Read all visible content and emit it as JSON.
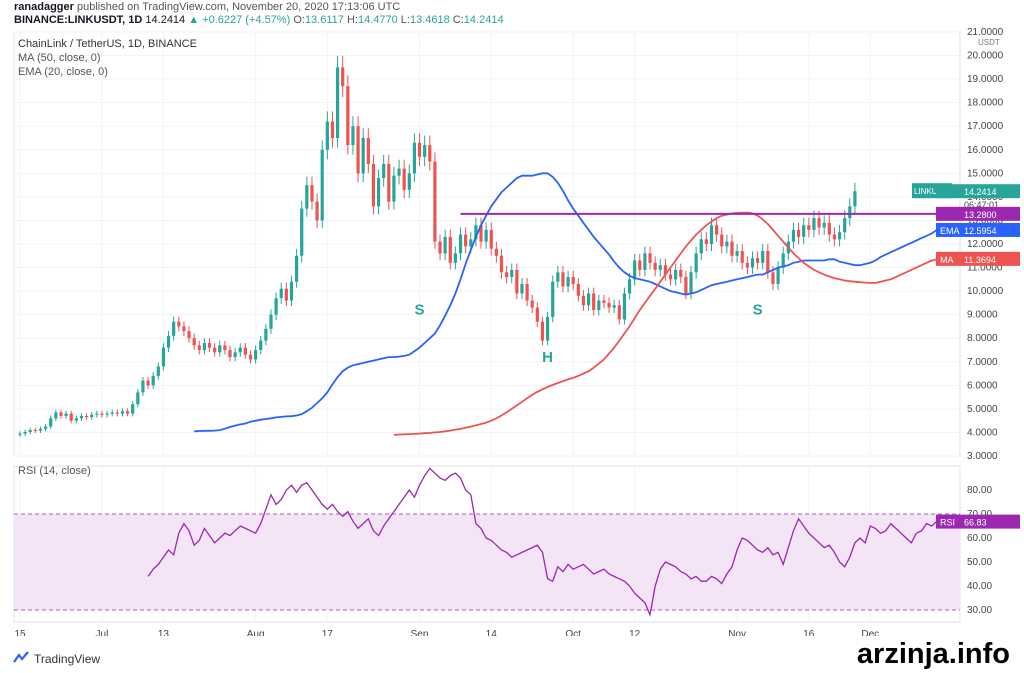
{
  "header": {
    "publisher": "ranadagger",
    "published_text": "published on TradingView.com, November 20, 2020 17:13:06 UTC",
    "symbol_line": "BINANCE:LINKUSDT, 1D",
    "last": "14.2414",
    "change": "▲ +0.6227 (+4.57%)",
    "open_label": "O:",
    "open": "13.6117",
    "high_label": "H:",
    "high": "14.4770",
    "low_label": "L:",
    "low": "13.4618",
    "close_label": "C:",
    "close": "14.2414"
  },
  "legend": {
    "title": "ChainLink / TetherUS, 1D, BINANCE",
    "ma": "MA (50, close, 0)",
    "ema": "EMA (20, close, 0)",
    "rsi": "RSI (14, close)"
  },
  "colors": {
    "up": "#26a69a",
    "down": "#ef5350",
    "ema": "#2962ff",
    "ma": "#ef5350",
    "resistance": "#9c27b0",
    "rsi": "#9c27b0",
    "rsi_band": "#f3e5f5",
    "last_badge": "#26a69a",
    "pattern": "#26a69a"
  },
  "chart_data": [
    {
      "type": "candlestick",
      "title": "ChainLink / TetherUS, 1D, BINANCE",
      "currency": "USDT",
      "ylim": [
        3.0,
        21.0
      ],
      "y_ticks": [
        "3.0000",
        "4.0000",
        "5.0000",
        "6.0000",
        "7.0000",
        "8.0000",
        "9.0000",
        "10.0000",
        "11.0000",
        "12.0000",
        "13.0000",
        "14.0000",
        "15.0000",
        "16.0000",
        "17.0000",
        "18.0000",
        "19.0000",
        "20.0000",
        "21.0000"
      ],
      "x_ticks": [
        "15",
        "Jul",
        "13",
        "Aug",
        "17",
        "Sep",
        "14",
        "Oct",
        "12",
        "Nov",
        "16",
        "Dec"
      ],
      "x_tick_index": [
        0,
        16,
        28,
        46,
        60,
        78,
        92,
        108,
        120,
        140,
        154,
        166
      ],
      "close": [
        3.95,
        4.02,
        4.1,
        4.08,
        4.15,
        4.25,
        4.6,
        4.85,
        4.7,
        4.8,
        4.5,
        4.6,
        4.7,
        4.65,
        4.75,
        4.8,
        4.75,
        4.8,
        4.85,
        4.8,
        4.9,
        4.8,
        5.2,
        5.7,
        6.2,
        6.0,
        6.4,
        6.8,
        7.6,
        8.1,
        8.7,
        8.5,
        8.3,
        8.0,
        7.7,
        7.5,
        7.8,
        7.6,
        7.4,
        7.7,
        7.5,
        7.2,
        7.4,
        7.6,
        7.3,
        7.1,
        7.5,
        7.9,
        8.4,
        9.0,
        9.7,
        10.1,
        9.6,
        10.4,
        11.5,
        13.5,
        14.5,
        13.8,
        13.0,
        16.0,
        17.2,
        16.5,
        19.5,
        18.7,
        16.2,
        17.0,
        15.0,
        16.5,
        15.4,
        13.6,
        14.8,
        15.4,
        13.8,
        14.9,
        15.2,
        14.3,
        15.0,
        16.3,
        15.7,
        16.2,
        15.5,
        12.1,
        11.6,
        12.3,
        11.2,
        11.6,
        12.4,
        11.9,
        12.2,
        12.8,
        12.1,
        12.6,
        11.8,
        11.5,
        10.8,
        10.6,
        10.9,
        9.9,
        10.3,
        9.6,
        9.3,
        8.7,
        7.9,
        8.9,
        10.4,
        10.8,
        10.2,
        10.6,
        10.3,
        9.8,
        9.4,
        9.9,
        9.2,
        9.6,
        9.5,
        9.3,
        9.4,
        8.8,
        9.9,
        10.5,
        11.3,
        10.9,
        11.6,
        11.2,
        10.9,
        11.1,
        10.7,
        10.5,
        10.9,
        10.6,
        9.9,
        10.8,
        11.6,
        12.2,
        12.0,
        12.8,
        12.4,
        11.9,
        12.1,
        11.5,
        11.7,
        11.2,
        11.0,
        11.4,
        11.2,
        11.7,
        10.8,
        10.3,
        11.0,
        11.6,
        12.1,
        12.6,
        12.3,
        12.8,
        12.6,
        13.1,
        12.7,
        12.9,
        12.4,
        12.2,
        12.5,
        13.1,
        13.6,
        14.24
      ],
      "ema20": [
        4.05,
        4.06,
        4.07,
        4.07,
        4.08,
        4.1,
        4.16,
        4.23,
        4.29,
        4.34,
        4.38,
        4.45,
        4.5,
        4.54,
        4.57,
        4.6,
        4.64,
        4.66,
        4.68,
        4.69,
        4.72,
        4.78,
        4.9,
        5.05,
        5.25,
        5.45,
        5.7,
        6.05,
        6.35,
        6.6,
        6.75,
        6.85,
        6.9,
        6.95,
        7.0,
        7.05,
        7.1,
        7.15,
        7.2,
        7.2,
        7.22,
        7.25,
        7.3,
        7.45,
        7.6,
        7.8,
        8.0,
        8.2,
        8.55,
        8.95,
        9.4,
        9.9,
        10.5,
        11.15,
        11.75,
        12.3,
        12.8,
        13.2,
        13.6,
        13.9,
        14.2,
        14.4,
        14.6,
        14.8,
        14.9,
        14.9,
        14.9,
        14.95,
        15.0,
        15.0,
        14.85,
        14.6,
        14.25,
        13.85,
        13.5,
        13.2,
        12.9,
        12.6,
        12.3,
        12.05,
        11.8,
        11.55,
        11.25,
        11.0,
        10.8,
        10.65,
        10.55,
        10.5,
        10.45,
        10.4,
        10.3,
        10.2,
        10.1,
        10.0,
        9.95,
        9.9,
        9.85,
        9.9,
        9.95,
        10.05,
        10.15,
        10.25,
        10.3,
        10.35,
        10.4,
        10.45,
        10.5,
        10.55,
        10.6,
        10.65,
        10.7,
        10.7,
        10.8,
        10.9,
        11.0,
        11.05,
        11.1,
        11.2,
        11.25,
        11.3,
        11.3,
        11.3,
        11.3,
        11.3,
        11.35,
        11.35,
        11.25,
        11.2,
        11.15,
        11.1,
        11.1,
        11.15,
        11.2,
        11.3,
        11.45,
        11.55,
        11.65,
        11.75,
        11.85,
        11.95,
        12.05,
        12.15,
        12.25,
        12.35,
        12.45,
        12.6
      ],
      "ma50": [
        3.9,
        3.91,
        3.92,
        3.93,
        3.94,
        3.95,
        3.97,
        3.98,
        4.0,
        4.02,
        4.05,
        4.08,
        4.12,
        4.15,
        4.2,
        4.25,
        4.3,
        4.36,
        4.42,
        4.5,
        4.6,
        4.72,
        4.85,
        5.0,
        5.15,
        5.3,
        5.45,
        5.6,
        5.72,
        5.83,
        5.93,
        6.02,
        6.1,
        6.18,
        6.25,
        6.32,
        6.4,
        6.5,
        6.6,
        6.75,
        6.92,
        7.1,
        7.35,
        7.6,
        7.9,
        8.2,
        8.5,
        8.85,
        9.2,
        9.5,
        9.8,
        10.1,
        10.4,
        10.7,
        11.0,
        11.3,
        11.6,
        11.9,
        12.15,
        12.4,
        12.6,
        12.8,
        12.95,
        13.1,
        13.2,
        13.25,
        13.3,
        13.32,
        13.33,
        13.33,
        13.3,
        13.2,
        13.05,
        12.85,
        12.6,
        12.35,
        12.1,
        11.85,
        11.6,
        11.4,
        11.2,
        11.05,
        10.9,
        10.8,
        10.7,
        10.62,
        10.55,
        10.5,
        10.45,
        10.42,
        10.4,
        10.38,
        10.36,
        10.35,
        10.35,
        10.4,
        10.45,
        10.5,
        10.6,
        10.7,
        10.8,
        10.9,
        11.0,
        11.1,
        11.2,
        11.3,
        11.35
      ],
      "resistance": 13.28,
      "last_value": "14.2414",
      "countdown": "06:47:01",
      "series_labels": [
        {
          "name": "EMA",
          "value": "12.5954"
        },
        {
          "name": "MA",
          "value": "11.3694"
        }
      ],
      "resistance_label": "13.2800",
      "last_label_name": "LINKUSDT",
      "annotations": [
        {
          "text": "S",
          "x_index": 78,
          "y": 9.0
        },
        {
          "text": "H",
          "x_index": 103,
          "y": 7.0
        },
        {
          "text": "S",
          "x_index": 144,
          "y": 9.0
        }
      ]
    },
    {
      "type": "line",
      "title": "RSI (14, close)",
      "ylim": [
        25,
        90
      ],
      "y_ticks": [
        "30.00",
        "40.00",
        "50.00",
        "60.00",
        "70.00",
        "80.00"
      ],
      "band": [
        30,
        70
      ],
      "values": [
        44,
        47,
        49,
        52,
        55,
        53,
        62,
        66,
        63,
        57,
        59,
        64,
        61,
        58,
        60,
        62,
        61,
        63,
        65,
        64,
        63,
        62,
        66,
        72,
        78,
        74,
        76,
        80,
        82,
        79,
        82,
        83,
        80,
        77,
        74,
        72,
        74,
        71,
        69,
        71,
        67,
        64,
        66,
        68,
        63,
        61,
        65,
        68,
        71,
        74,
        77,
        80,
        77,
        82,
        86,
        89,
        87,
        85,
        84,
        86,
        87,
        85,
        80,
        78,
        66,
        64,
        60,
        59,
        57,
        55,
        54,
        52,
        53,
        54,
        55,
        56,
        57,
        54,
        43,
        42,
        48,
        46,
        49,
        47,
        48,
        49,
        47,
        45,
        46,
        47,
        45,
        44,
        43,
        42,
        40,
        37,
        35,
        33,
        28,
        40,
        47,
        50,
        49,
        48,
        46,
        45,
        43,
        44,
        42,
        42,
        44,
        43,
        41,
        45,
        48,
        55,
        60,
        59,
        57,
        55,
        54,
        56,
        53,
        54,
        49,
        56,
        63,
        68,
        65,
        62,
        60,
        58,
        56,
        57,
        54,
        50,
        48,
        52,
        58,
        60,
        58,
        65,
        64,
        62,
        63,
        66,
        64,
        62,
        60,
        58,
        62,
        63,
        66,
        65,
        67
      ],
      "current_label": "RSI",
      "current_value": "66.83"
    }
  ],
  "branding": {
    "tv": "TradingView",
    "watermark": "arzinja.info"
  }
}
